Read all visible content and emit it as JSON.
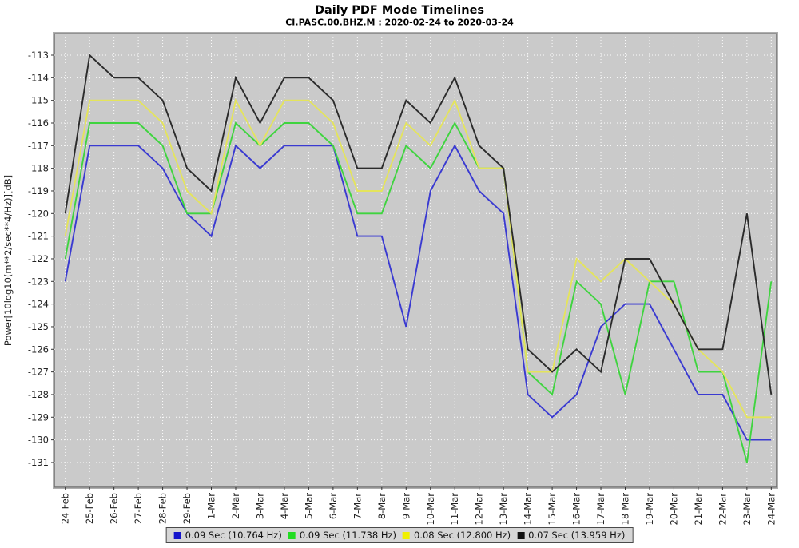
{
  "title": "Daily PDF Mode Timelines",
  "subtitle": "CI.PASC.00.BHZ.M : 2020-02-24 to 2020-03-24",
  "chart_data": {
    "type": "line",
    "title": "Daily PDF Mode Timelines",
    "subtitle": "CI.PASC.00.BHZ.M : 2020-02-24 to 2020-03-24",
    "ylabel": "Power[10log10(m**2/sec**4/Hz)][dB]",
    "xlabel": "",
    "ylim": [
      -131,
      -113
    ],
    "yticks": [
      -113,
      -114,
      -115,
      -116,
      -117,
      -118,
      -119,
      -120,
      -121,
      -122,
      -123,
      -124,
      -125,
      -126,
      -127,
      -128,
      -129,
      -130,
      -131
    ],
    "grid": true,
    "legend_position": "bottom",
    "plot_background": "#cacaca",
    "gridline_color": "#ffffff",
    "categories": [
      "24-Feb",
      "25-Feb",
      "26-Feb",
      "27-Feb",
      "28-Feb",
      "29-Feb",
      "1-Mar",
      "2-Mar",
      "3-Mar",
      "4-Mar",
      "5-Mar",
      "6-Mar",
      "7-Mar",
      "8-Mar",
      "9-Mar",
      "10-Mar",
      "11-Mar",
      "12-Mar",
      "13-Mar",
      "14-Mar",
      "15-Mar",
      "16-Mar",
      "17-Mar",
      "18-Mar",
      "19-Mar",
      "20-Mar",
      "21-Mar",
      "22-Mar",
      "23-Mar",
      "24-Mar"
    ],
    "series": [
      {
        "name": "0.09 Sec (10.764 Hz)",
        "color": "#3a3ad1",
        "swatch": "#1414cc",
        "values": [
          -123,
          -117,
          -117,
          -117,
          -118,
          -120,
          -121,
          -117,
          -118,
          -117,
          -117,
          -117,
          -121,
          -121,
          -125,
          -119,
          -117,
          -119,
          -120,
          -128,
          -129,
          -128,
          -125,
          -124,
          -124,
          -126,
          -128,
          -128,
          -130,
          -130
        ]
      },
      {
        "name": "0.09 Sec (11.738 Hz)",
        "color": "#3fd43f",
        "swatch": "#22dd22",
        "values": [
          -122,
          -116,
          -116,
          -116,
          -117,
          -120,
          -120,
          -116,
          -117,
          -116,
          -116,
          -117,
          -120,
          -120,
          -117,
          -118,
          -116,
          -118,
          -118,
          -127,
          -128,
          -123,
          -124,
          -128,
          -123,
          -123,
          -127,
          -127,
          -131,
          -123
        ]
      },
      {
        "name": "0.08 Sec (12.800 Hz)",
        "color": "#e4e45c",
        "swatch": "#f0f000",
        "values": [
          -121,
          -115,
          -115,
          -115,
          -116,
          -119,
          -120,
          -115,
          -117,
          -115,
          -115,
          -116,
          -119,
          -119,
          -116,
          -117,
          -115,
          -118,
          -118,
          -127,
          -127,
          -122,
          -123,
          -122,
          -123,
          -124,
          -126,
          -127,
          -129,
          -129
        ]
      },
      {
        "name": "0.07 Sec (13.959 Hz)",
        "color": "#2b2b2b",
        "swatch": "#111111",
        "values": [
          -120,
          -113,
          -114,
          -114,
          -115,
          -118,
          -119,
          -114,
          -116,
          -114,
          -114,
          -115,
          -118,
          -118,
          -115,
          -116,
          -114,
          -117,
          -118,
          -126,
          -127,
          -126,
          -127,
          -122,
          -122,
          -124,
          -126,
          -126,
          -120,
          -128
        ]
      }
    ]
  }
}
